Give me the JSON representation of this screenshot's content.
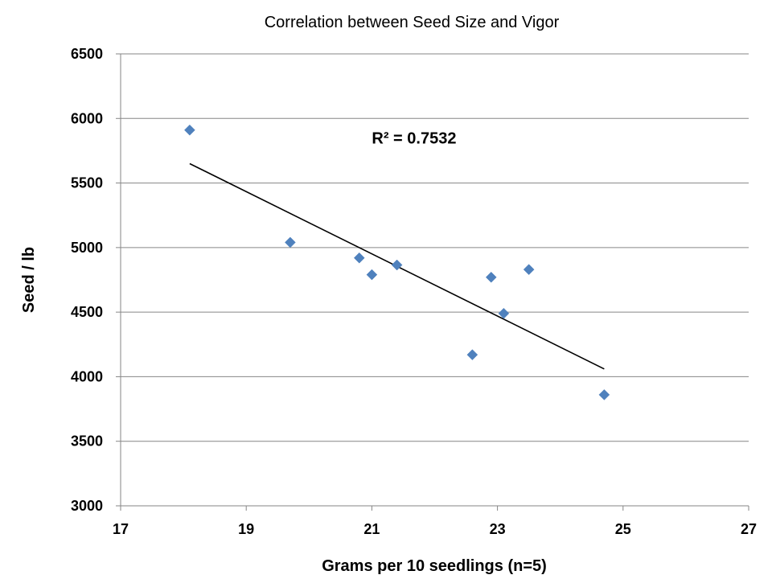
{
  "chart_data": {
    "type": "scatter",
    "title": "Correlation between Seed Size and Vigor",
    "xlabel": "Grams per 10 seedlings (n=5)",
    "ylabel": "Seed / lb",
    "xlim": [
      17,
      27
    ],
    "ylim": [
      3000,
      6500
    ],
    "xticks": [
      17,
      19,
      21,
      23,
      25,
      27
    ],
    "yticks": [
      3000,
      3500,
      4000,
      4500,
      5000,
      5500,
      6000,
      6500
    ],
    "grid": {
      "horizontal": true,
      "vertical": false
    },
    "series": [
      {
        "color": "#4F81BD",
        "marker": "diamond",
        "points": [
          {
            "x": 18.1,
            "y": 5910
          },
          {
            "x": 19.7,
            "y": 5040
          },
          {
            "x": 20.8,
            "y": 4920
          },
          {
            "x": 21.0,
            "y": 4790
          },
          {
            "x": 21.4,
            "y": 4865
          },
          {
            "x": 22.6,
            "y": 4170
          },
          {
            "x": 22.9,
            "y": 4770
          },
          {
            "x": 23.1,
            "y": 4490
          },
          {
            "x": 23.5,
            "y": 4830
          },
          {
            "x": 24.7,
            "y": 3860
          }
        ]
      }
    ],
    "trendline": {
      "type": "linear",
      "color": "#000000",
      "points": [
        {
          "x": 18.1,
          "y": 5650
        },
        {
          "x": 24.7,
          "y": 4060
        }
      ]
    },
    "annotations": [
      {
        "text": "R² = 0.7532",
        "x": 21.0,
        "y": 5850
      }
    ]
  }
}
